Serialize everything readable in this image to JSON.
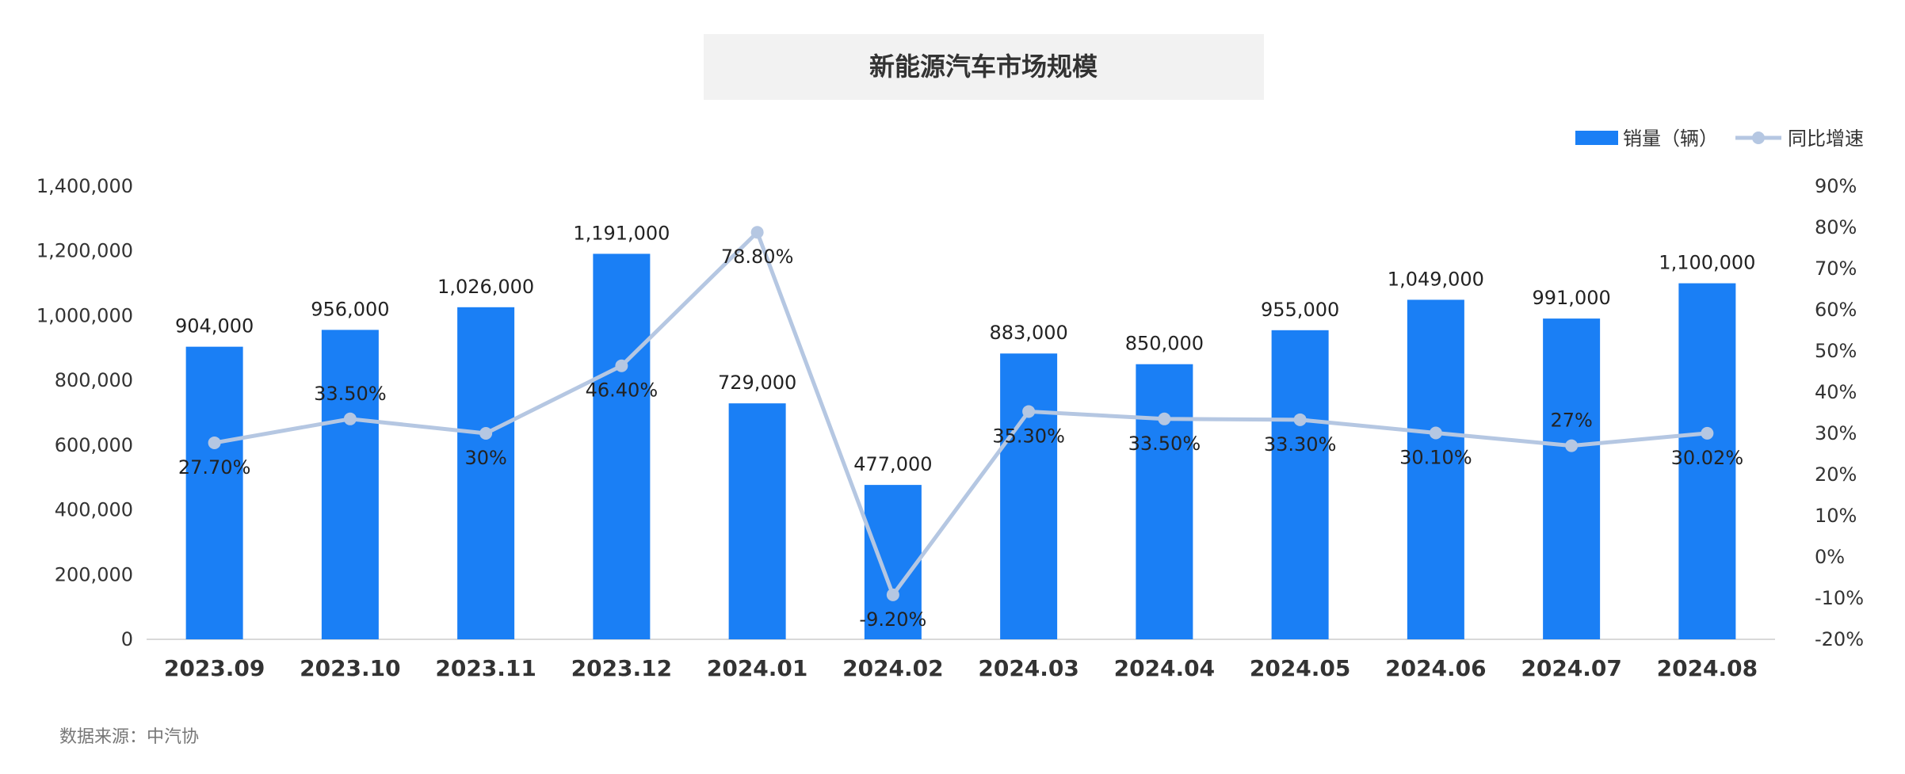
{
  "chart_data": {
    "type": "bar",
    "title": "新能源汽车市场规模",
    "categories": [
      "2023.09",
      "2023.10",
      "2023.11",
      "2023.12",
      "2024.01",
      "2024.02",
      "2024.03",
      "2024.04",
      "2024.05",
      "2024.06",
      "2024.07",
      "2024.08"
    ],
    "series": [
      {
        "name": "销量（辆）",
        "type": "bar",
        "axis": "left",
        "values": [
          904000,
          956000,
          1026000,
          1191000,
          729000,
          477000,
          883000,
          850000,
          955000,
          1049000,
          991000,
          1100000
        ],
        "labels": [
          "904,000",
          "956,000",
          "1,026,000",
          "1,191,000",
          "729,000",
          "477,000",
          "883,000",
          "850,000",
          "955,000",
          "1,049,000",
          "991,000",
          "1,100,000"
        ]
      },
      {
        "name": "同比增速",
        "type": "line",
        "axis": "right",
        "values": [
          27.7,
          33.5,
          30,
          46.4,
          78.8,
          -9.2,
          35.3,
          33.5,
          33.3,
          30.1,
          27,
          30.02
        ],
        "labels": [
          "27.70%",
          "33.50%",
          "30%",
          "46.40%",
          "78.80%",
          "-9.20%",
          "35.30%",
          "33.50%",
          "33.30%",
          "30.10%",
          "27%",
          "30.02%"
        ]
      }
    ],
    "y_left": {
      "ylim": [
        0,
        1400000
      ],
      "ticks": [
        "0",
        "200,000",
        "400,000",
        "600,000",
        "800,000",
        "1,000,000",
        "1,200,000",
        "1,400,000"
      ]
    },
    "y_right": {
      "ylim": [
        -20,
        90
      ],
      "ticks": [
        "-20%",
        "-10%",
        "0%",
        "10%",
        "20%",
        "30%",
        "40%",
        "50%",
        "60%",
        "70%",
        "80%",
        "90%"
      ]
    },
    "legend_position": "top-right",
    "grid": false
  },
  "colors": {
    "bar": "#1a7ff5",
    "line": "#b5c7e2",
    "title_bg": "#f2f2f2",
    "axis": "#d9d9d9"
  },
  "source": "数据来源：中汽协"
}
